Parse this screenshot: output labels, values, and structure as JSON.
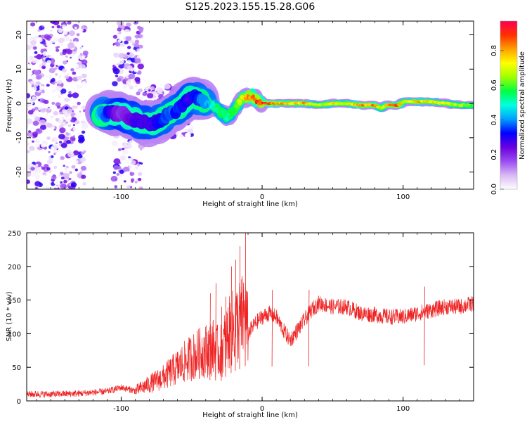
{
  "title": "S125.2023.155.15.28.G06",
  "chart_data": [
    {
      "type": "heatmap",
      "name": "spectrogram",
      "xlabel": "Height of straight line (km)",
      "ylabel": "Frequency (Hz)",
      "xlim": [
        -167,
        150
      ],
      "ylim": [
        -25,
        24
      ],
      "xticks": [
        -100,
        0,
        100
      ],
      "yticks": [
        -20,
        -10,
        0,
        10,
        20
      ],
      "colorbar": {
        "label": "Normalized spectral amplitude",
        "range": [
          0,
          0.97
        ],
        "ticks": [
          0.0,
          0.2,
          0.4,
          0.6,
          0.8
        ],
        "tick_labels": [
          "0.0",
          "0.2",
          "0.4",
          "0.6",
          "0.8"
        ],
        "colors": [
          "#ffffff",
          "#d9b8f5",
          "#9a4cf0",
          "#6a00e0",
          "#0000ff",
          "#00a0ff",
          "#00ffe0",
          "#00ff40",
          "#a0ff00",
          "#ffff00",
          "#ffa000",
          "#ff3000",
          "#ff0050"
        ]
      },
      "ridge": {
        "heights_km": [
          -115,
          -100,
          -88,
          -80,
          -72,
          -65,
          -58,
          -50,
          -44,
          -38,
          -33,
          -28,
          -24,
          -20,
          -15,
          -11,
          -7,
          -4,
          0,
          10,
          20,
          30,
          40,
          50,
          60,
          70,
          75,
          80,
          84,
          88,
          92,
          97,
          100,
          110,
          120,
          130,
          140,
          150
        ],
        "freq_hz": [
          -3,
          -3,
          -5,
          -6,
          -5,
          -3,
          -1,
          2,
          1,
          0,
          -1,
          -3,
          -4,
          -2,
          1,
          2,
          2,
          1,
          0,
          0,
          0,
          0,
          -0.5,
          0,
          0,
          -0.5,
          -0.5,
          -0.5,
          -1.5,
          -0.5,
          -0.5,
          -0.5,
          0.5,
          0.5,
          0.5,
          0,
          -0.5,
          -0.5
        ],
        "amplitude": [
          0.45,
          0.2,
          0.3,
          0.3,
          0.35,
          0.4,
          0.35,
          0.3,
          0.4,
          0.45,
          0.55,
          0.6,
          0.55,
          0.65,
          0.75,
          0.9,
          0.95,
          0.97,
          0.97,
          0.9,
          0.8,
          0.85,
          0.7,
          0.8,
          0.75,
          0.9,
          0.85,
          0.9,
          0.7,
          0.85,
          0.9,
          0.9,
          0.75,
          0.85,
          0.8,
          0.75,
          0.7,
          0.65
        ]
      },
      "noise_regions": [
        {
          "x_range": [
            -167,
            -125
          ],
          "f_range": [
            -25,
            24
          ],
          "density": "high"
        },
        {
          "x_range": [
            -105,
            -85
          ],
          "f_range": [
            -25,
            24
          ],
          "density": "medium"
        },
        {
          "x_range": [
            -85,
            -50
          ],
          "f_range": [
            -10,
            5
          ],
          "density": "medium"
        }
      ]
    },
    {
      "type": "line",
      "name": "snr",
      "xlabel": "Height of straight line (km)",
      "ylabel": "SNR (10 * v/v)",
      "xlim": [
        -167,
        150
      ],
      "ylim": [
        0,
        250
      ],
      "xticks": [
        -100,
        0,
        100
      ],
      "yticks": [
        0,
        50,
        100,
        150,
        200,
        250
      ],
      "series": [
        {
          "name": "SNR",
          "color": "#ee2222",
          "x": [
            -167,
            -150,
            -130,
            -110,
            -100,
            -90,
            -80,
            -70,
            -60,
            -50,
            -40,
            -35,
            -30,
            -25,
            -20,
            -15,
            -12,
            -10,
            -5,
            0,
            5,
            10,
            15,
            20,
            25,
            30,
            35,
            40,
            50,
            60,
            70,
            80,
            90,
            100,
            110,
            120,
            130,
            140,
            150
          ],
          "y": [
            10,
            10,
            11,
            14,
            20,
            15,
            25,
            35,
            50,
            65,
            75,
            80,
            70,
            95,
            110,
            120,
            130,
            100,
            115,
            125,
            130,
            125,
            105,
            90,
            105,
            120,
            135,
            145,
            140,
            140,
            130,
            128,
            125,
            125,
            130,
            135,
            140,
            140,
            145
          ]
        }
      ],
      "spikes": [
        {
          "x": -37,
          "y": 160
        },
        {
          "x": -33,
          "y": 175
        },
        {
          "x": -29,
          "y": 140
        },
        {
          "x": -26,
          "y": 155
        },
        {
          "x": -22,
          "y": 200
        },
        {
          "x": -19,
          "y": 210
        },
        {
          "x": -16,
          "y": 230
        },
        {
          "x": -12,
          "y": 250
        },
        {
          "x": 7,
          "y": 165
        },
        {
          "x": 33,
          "y": 165
        },
        {
          "x": 115,
          "y": 170
        }
      ]
    }
  ]
}
